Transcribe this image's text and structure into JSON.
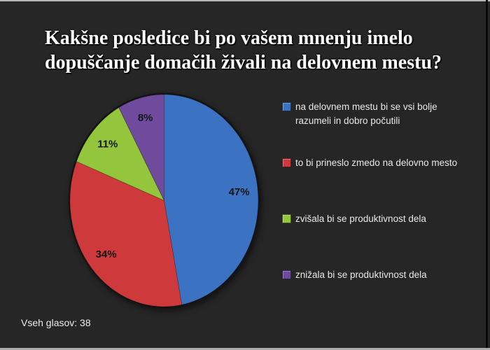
{
  "slide": {
    "background_color": "#262626",
    "title": "Kakšne posledice bi po vašem mnenju imelo dopuščanje domačih živali na delovnem mestu?",
    "footer": "Vseh glasov: 38"
  },
  "chart_data": {
    "type": "pie",
    "title": "Kakšne posledice bi po vašem mnenju imelo dopuščanje domačih živali na delovnem mestu?",
    "total_votes": 38,
    "start_angle_deg": 0,
    "direction": "clockwise",
    "legend_position": "right",
    "label_radius": 0.8,
    "categories": [
      "na delovnem mestu bi se vsi bolje razumeli in dobro počutili",
      "to bi prineslo zmedo na delovno mesto",
      "zvišala bi se produktivnost dela",
      "znižala bi se produktivnost dela"
    ],
    "values": [
      47,
      34,
      11,
      8
    ],
    "slices": [
      {
        "label": "na delovnem mestu bi se vsi bolje razumeli in dobro počutili",
        "pct": 47,
        "value_label": "47%",
        "color": "#3B72C1"
      },
      {
        "label": "to bi prineslo zmedo na delovno mesto",
        "pct": 34,
        "value_label": "34%",
        "color": "#CE3A3B"
      },
      {
        "label": "zvišala bi se produktivnost dela",
        "pct": 11,
        "value_label": "11%",
        "color": "#94C63D"
      },
      {
        "label": "znižala bi se produktivnost dela",
        "pct": 8,
        "value_label": "8%",
        "color": "#6F4A9D"
      }
    ]
  }
}
